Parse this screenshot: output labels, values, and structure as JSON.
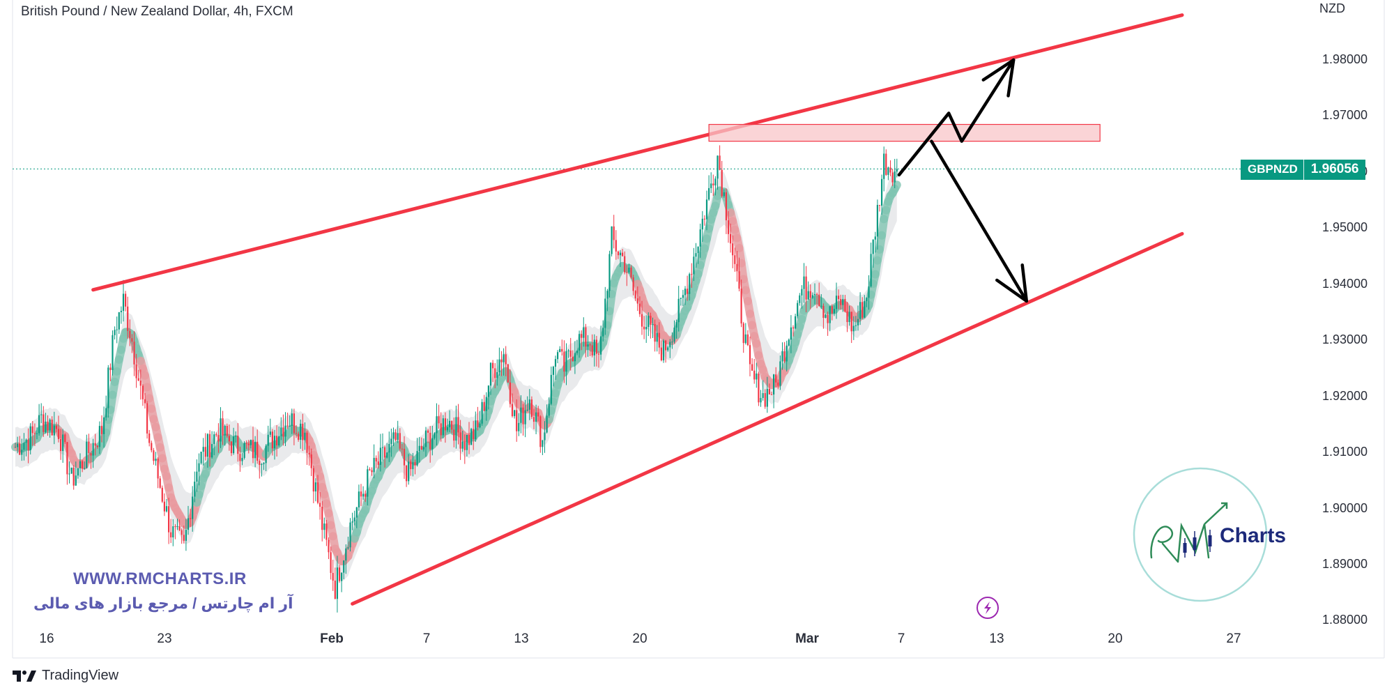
{
  "header": {
    "title": "British Pound / New Zealand Dollar, 4h, FXCM",
    "currency": "NZD"
  },
  "price_badge": {
    "symbol": "GBPNZD",
    "value": "1.96056",
    "color": "#089981"
  },
  "footer": {
    "brand": "TradingView"
  },
  "watermark": {
    "url": "WWW.RMCHARTS.IR",
    "tagline": "آر ام چارتس / مرجع بازار های مالی",
    "logo_text": "Charts"
  },
  "colors": {
    "channel_line": "#f23645",
    "bull_candle": "#089981",
    "bear_candle": "#f23645",
    "resistance_zone": "#f8c5c8",
    "arrow": "#000000"
  },
  "chart_data": {
    "type": "candlestick",
    "symbol": "GBPNZD",
    "timeframe": "4h",
    "y_axis": {
      "unit": "NZD",
      "ticks": [
        "1.98000",
        "1.97000",
        "1.96000",
        "1.95000",
        "1.94000",
        "1.93000",
        "1.92000",
        "1.91000",
        "1.90000",
        "1.89000",
        "1.88000"
      ],
      "ylim": [
        1.878,
        1.991
      ]
    },
    "x_axis": {
      "ticks": [
        {
          "label": "16",
          "bold": false
        },
        {
          "label": "23",
          "bold": false
        },
        {
          "label": "Feb",
          "bold": true
        },
        {
          "label": "7",
          "bold": false
        },
        {
          "label": "13",
          "bold": false
        },
        {
          "label": "20",
          "bold": false
        },
        {
          "label": "Mar",
          "bold": true
        },
        {
          "label": "7",
          "bold": false
        },
        {
          "label": "13",
          "bold": false
        },
        {
          "label": "20",
          "bold": false
        },
        {
          "label": "27",
          "bold": false
        }
      ]
    },
    "last_price": 1.96056,
    "price_path": [
      [
        0,
        1.911
      ],
      [
        8,
        1.913
      ],
      [
        12,
        1.916
      ],
      [
        20,
        1.914
      ],
      [
        26,
        1.905
      ],
      [
        40,
        1.914
      ],
      [
        46,
        1.932
      ],
      [
        50,
        1.937
      ],
      [
        54,
        1.93
      ],
      [
        62,
        1.912
      ],
      [
        72,
        1.896
      ],
      [
        78,
        1.893
      ],
      [
        84,
        1.908
      ],
      [
        94,
        1.914
      ],
      [
        102,
        1.911
      ],
      [
        114,
        1.91
      ],
      [
        126,
        1.916
      ],
      [
        134,
        1.914
      ],
      [
        142,
        1.897
      ],
      [
        148,
        1.886
      ],
      [
        155,
        1.897
      ],
      [
        164,
        1.906
      ],
      [
        176,
        1.912
      ],
      [
        182,
        1.906
      ],
      [
        190,
        1.912
      ],
      [
        200,
        1.916
      ],
      [
        208,
        1.912
      ],
      [
        214,
        1.914
      ],
      [
        220,
        1.924
      ],
      [
        226,
        1.928
      ],
      [
        232,
        1.914
      ],
      [
        238,
        1.92
      ],
      [
        244,
        1.912
      ],
      [
        250,
        1.928
      ],
      [
        254,
        1.925
      ],
      [
        260,
        1.93
      ],
      [
        266,
        1.93
      ],
      [
        270,
        1.926
      ],
      [
        276,
        1.948
      ],
      [
        282,
        1.944
      ],
      [
        288,
        1.936
      ],
      [
        296,
        1.93
      ],
      [
        300,
        1.928
      ],
      [
        308,
        1.936
      ],
      [
        316,
        1.948
      ],
      [
        322,
        1.958
      ],
      [
        325,
        1.963
      ],
      [
        330,
        1.951
      ],
      [
        334,
        1.94
      ],
      [
        340,
        1.924
      ],
      [
        346,
        1.92
      ],
      [
        352,
        1.922
      ],
      [
        358,
        1.932
      ],
      [
        364,
        1.939
      ],
      [
        370,
        1.94
      ],
      [
        376,
        1.934
      ],
      [
        382,
        1.937
      ],
      [
        388,
        1.932
      ],
      [
        394,
        1.938
      ],
      [
        398,
        1.95
      ],
      [
        402,
        1.962
      ],
      [
        408,
        1.96
      ]
    ],
    "annotations": [
      {
        "type": "trendline",
        "name": "channel-upper",
        "from": {
          "index": 36,
          "price": 1.939
        },
        "to": {
          "index": 540,
          "price": 1.988
        }
      },
      {
        "type": "trendline",
        "name": "channel-lower",
        "from": {
          "index": 156,
          "price": 1.883
        },
        "to": {
          "index": 540,
          "price": 1.949
        }
      },
      {
        "type": "zone",
        "name": "resistance-zone",
        "index_range": [
          321,
          502
        ],
        "price_range": [
          1.9655,
          1.9685
        ]
      },
      {
        "type": "path-arrow",
        "name": "bullish-scenario",
        "points": [
          [
            409,
            1.9595
          ],
          [
            432,
            1.9705
          ],
          [
            438,
            1.9655
          ],
          [
            462,
            1.98
          ]
        ]
      },
      {
        "type": "path-arrow",
        "name": "bearish-scenario",
        "points": [
          [
            424,
            1.9655
          ],
          [
            468,
            1.937
          ]
        ]
      }
    ]
  }
}
